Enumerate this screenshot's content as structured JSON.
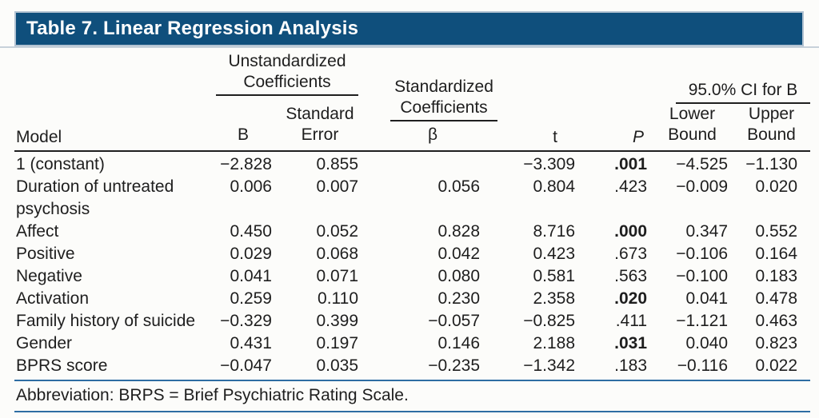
{
  "title": "Table 7. Linear Regression Analysis",
  "header": {
    "model": "Model",
    "group_unstandardized": "Unstandardized Coefficients",
    "group_standardized": "Standardized Coefficients",
    "group_ci": "95.0% CI for B",
    "col_b": "B",
    "col_se": "Standard Error",
    "col_beta": "β",
    "col_t": "t",
    "col_p": "P",
    "col_lower": "Lower Bound",
    "col_upper": "Upper Bound"
  },
  "rows": [
    {
      "model": "1 (constant)",
      "b": "−2.828",
      "se": "0.855",
      "beta": "",
      "t": "−3.309",
      "p": ".001",
      "p_bold": true,
      "lower": "−4.525",
      "upper": "−1.130"
    },
    {
      "model": "Duration of untreated psychosis",
      "b": "0.006",
      "se": "0.007",
      "beta": "0.056",
      "t": "0.804",
      "p": ".423",
      "p_bold": false,
      "lower": "−0.009",
      "upper": "0.020"
    },
    {
      "model": "Affect",
      "b": "0.450",
      "se": "0.052",
      "beta": "0.828",
      "t": "8.716",
      "p": ".000",
      "p_bold": true,
      "lower": "0.347",
      "upper": "0.552"
    },
    {
      "model": "Positive",
      "b": "0.029",
      "se": "0.068",
      "beta": "0.042",
      "t": "0.423",
      "p": ".673",
      "p_bold": false,
      "lower": "−0.106",
      "upper": "0.164"
    },
    {
      "model": "Negative",
      "b": "0.041",
      "se": "0.071",
      "beta": "0.080",
      "t": "0.581",
      "p": ".563",
      "p_bold": false,
      "lower": "−0.100",
      "upper": "0.183"
    },
    {
      "model": "Activation",
      "b": "0.259",
      "se": "0.110",
      "beta": "0.230",
      "t": "2.358",
      "p": ".020",
      "p_bold": true,
      "lower": "0.041",
      "upper": "0.478"
    },
    {
      "model": "Family history of suicide",
      "b": "−0.329",
      "se": "0.399",
      "beta": "−0.057",
      "t": "−0.825",
      "p": ".411",
      "p_bold": false,
      "lower": "−1.121",
      "upper": "0.463"
    },
    {
      "model": "Gender",
      "b": "0.431",
      "se": "0.197",
      "beta": "0.146",
      "t": "2.188",
      "p": ".031",
      "p_bold": true,
      "lower": "0.040",
      "upper": "0.823"
    },
    {
      "model": "BPRS score",
      "b": "−0.047",
      "se": "0.035",
      "beta": "−0.235",
      "t": "−1.342",
      "p": ".183",
      "p_bold": false,
      "lower": "−0.116",
      "upper": "0.022"
    }
  ],
  "footnote": "Abbreviation: BRPS = Brief Psychiatric Rating Scale.",
  "colors": {
    "title_bar": "#0f4f7c",
    "title_text": "#ffffff",
    "footnote_rule": "#2e6da3",
    "header_rule": "#1f1f1f"
  }
}
